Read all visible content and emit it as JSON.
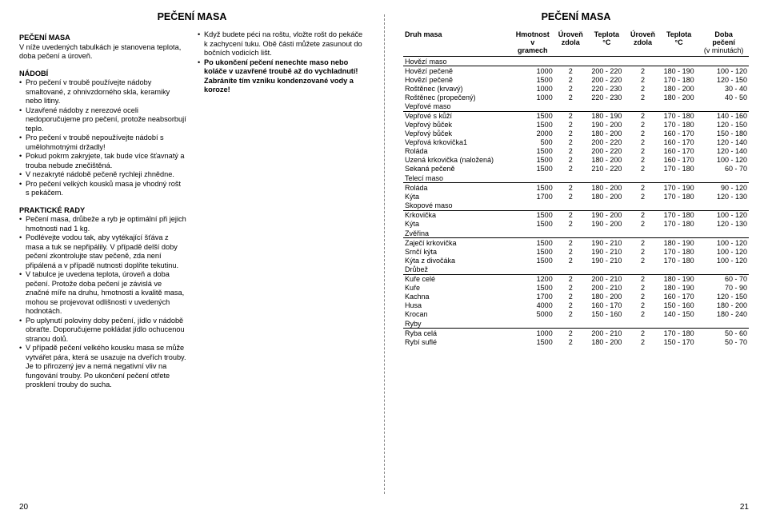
{
  "title_left": "PEČENÍ MASA",
  "title_right": "PEČENÍ MASA",
  "left": {
    "h1": "PEČENÍ MASA",
    "intro": "V níže uvedených tabulkách je stanovena teplota, doba pečení a úroveň.",
    "h2": "NÁDOBÍ",
    "nadobi": [
      "Pro pečení v troubě používejte nádoby smaltované, z ohnivzdorného skla, keramiky nebo litiny.",
      "Uzavřené nádoby z nerezové oceli nedoporučujeme pro pečení, protože neabsorbují teplo.",
      "Pro pečení v troubě nepoužívejte nádobí s umělohmotnými držadly!",
      "Pokud pokrm zakryjete, tak bude více šťavnatý a trouba nebude znečištěná.",
      "V nezakryté nádobě pečeně rychleji zhnědne.",
      "Pro pečení velkých kousků masa je vhodný rošt s pekáčem."
    ],
    "h3": "PRAKTICKÉ RADY",
    "rady": [
      "Pečení masa, drůbeže a ryb je optimální při jejich hmotnosti nad 1 kg.",
      "Podlévejte vodou tak, aby vytékající šťáva z masa a tuk se nepřipálily. V případě delší doby pečení zkontrolujte stav pečeně, zda není připálená a v případě nutnosti doplňte tekutinu.",
      "V tabulce je uvedena teplota, úroveň a doba pečení. Protože doba pečení je závislá ve značné míře na druhu, hmotnosti a kvalitě masa, mohou se projevovat odlišnosti v uvedených hodnotách.",
      "Po uplynutí poloviny doby pečení, jídlo v nádobě obraťte. Doporučujeme pokládat jídlo ochucenou stranou dolů.",
      "V případě pečení velkého kousku masa se může vytvářet pára, která se usazuje na dveřích trouby. Je to přirozený jev a nemá negativní vliv na fungování trouby. Po ukončení pečení otřete prosklení trouby do sucha."
    ],
    "rcol": [
      "Když budete péci na roštu, vložte rošt do pekáče k zachycení tuku. Obě části můžete zasunout do bočních vodicích lišt.",
      "<b>Po ukončení pečení nenechte maso nebo koláče v uzavřené troubě až do vychladnutí! Zabráníte tím vzniku kondenzované vody a koroze!</b>"
    ]
  },
  "right_table": {
    "headers": {
      "c1": "Druh masa",
      "c2a": "Hmotnost",
      "c2b": "v",
      "c2c": "gramech",
      "c3a": "Úroveň",
      "c3b": "zdola",
      "c4a": "Teplota",
      "c4b": "°C",
      "c5a": "Úroveň",
      "c5b": "zdola",
      "c6a": "Teplota",
      "c6b": "°C",
      "c7a": "Doba",
      "c7b": "pečení",
      "c7c": "(v minutách)"
    },
    "groups": [
      {
        "cat": "Hovězí maso",
        "rows": [
          [
            "Hovězí pečeně",
            "1000",
            "2",
            "200 - 220",
            "2",
            "180 - 190",
            "100 - 120"
          ],
          [
            "Hovězí pečeně",
            "1500",
            "2",
            "200 - 220",
            "2",
            "170 - 180",
            "120 - 150"
          ],
          [
            "Roštěnec (krvavý)",
            "1000",
            "2",
            "220 - 230",
            "2",
            "180 - 200",
            "30 - 40"
          ],
          [
            "Roštěnec (propečený)",
            "1000",
            "2",
            "220 - 230",
            "2",
            "180 - 200",
            "40 - 50"
          ]
        ]
      },
      {
        "cat": "Vepřové maso",
        "rows": [
          [
            "Vepřové s kůží",
            "1500",
            "2",
            "180 - 190",
            "2",
            "170 - 180",
            "140 - 160"
          ],
          [
            "Vepřový bůček",
            "1500",
            "2",
            "190 - 200",
            "2",
            "170 - 180",
            "120 - 150"
          ],
          [
            "Vepřový bůček",
            "2000",
            "2",
            "180 - 200",
            "2",
            "160 - 170",
            "150 - 180"
          ],
          [
            "Vepřová krkovička1",
            "500",
            "2",
            "200 - 220",
            "2",
            "160 - 170",
            "120 - 140"
          ],
          [
            "Roláda",
            "1500",
            "2",
            "200 - 220",
            "2",
            "160 - 170",
            "120 - 140"
          ],
          [
            "Uzená krkovička (naložená)",
            "1500",
            "2",
            "180 - 200",
            "2",
            "160 - 170",
            "100 - 120"
          ],
          [
            "Sekaná pečeně",
            "1500",
            "2",
            "210 - 220",
            "2",
            "170 - 180",
            "60 - 70"
          ]
        ]
      },
      {
        "cat": "Telecí maso",
        "rows": [
          [
            "Roláda",
            "1500",
            "2",
            "180 - 200",
            "2",
            "170 - 190",
            "90 - 120"
          ],
          [
            "Kýta",
            "1700",
            "2",
            "180 - 200",
            "2",
            "170 - 180",
            "120 - 130"
          ]
        ]
      },
      {
        "cat": "Skopové maso",
        "rows": [
          [
            "Krkovička",
            "1500",
            "2",
            "190 - 200",
            "2",
            "170 - 180",
            "100 - 120"
          ],
          [
            "Kýta",
            "1500",
            "2",
            "190 - 200",
            "2",
            "170 - 180",
            "120 - 130"
          ]
        ]
      },
      {
        "cat": "Zvěřina",
        "rows": [
          [
            "Zaječí krkovička",
            "1500",
            "2",
            "190 - 210",
            "2",
            "180 - 190",
            "100 - 120"
          ],
          [
            "Srnčí kýta",
            "1500",
            "2",
            "190 - 210",
            "2",
            "170 - 180",
            "100 - 120"
          ],
          [
            "Kýta z divočáka",
            "1500",
            "2",
            "190 - 210",
            "2",
            "170 - 180",
            "100 - 120"
          ]
        ]
      },
      {
        "cat": "Drůbež",
        "rows": [
          [
            "Kuře celé",
            "1200",
            "2",
            "200 - 210",
            "2",
            "180 - 190",
            "60 - 70"
          ],
          [
            "Kuře",
            "1500",
            "2",
            "200 - 210",
            "2",
            "180 - 190",
            "70 - 90"
          ],
          [
            "Kachna",
            "1700",
            "2",
            "180 - 200",
            "2",
            "160 - 170",
            "120 - 150"
          ],
          [
            "Husa",
            "4000",
            "2",
            "160 - 170",
            "2",
            "150 - 160",
            "180 - 200"
          ],
          [
            "Krocan",
            "5000",
            "2",
            "150 - 160",
            "2",
            "140 - 150",
            "180 - 240"
          ]
        ]
      },
      {
        "cat": "Ryby",
        "rows": [
          [
            "Ryba celá",
            "1000",
            "2",
            "200 - 210",
            "2",
            "170 - 180",
            "50 - 60"
          ],
          [
            "Rybí suflé",
            "1500",
            "2",
            "180 - 200",
            "2",
            "150 - 170",
            "50 - 70"
          ]
        ]
      }
    ]
  },
  "pagenum_left": "20",
  "pagenum_right": "21"
}
